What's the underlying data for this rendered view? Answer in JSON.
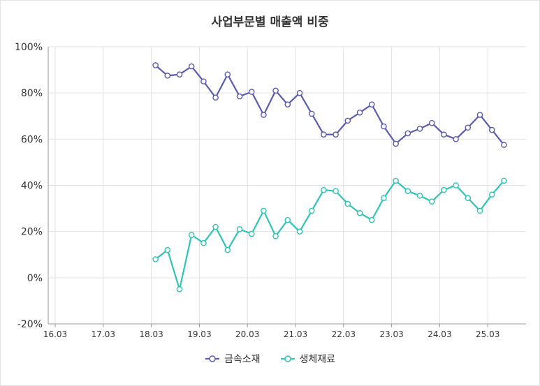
{
  "chart_data": {
    "type": "line",
    "title": "사업부문별 매출액 비중",
    "xlabel": "",
    "ylabel": "",
    "ylim": [
      -20,
      100
    ],
    "yticks": [
      "100%",
      "80%",
      "60%",
      "40%",
      "20%",
      "0%",
      "-20%"
    ],
    "ytick_values": [
      100,
      80,
      60,
      40,
      20,
      0,
      -20
    ],
    "xticks": [
      "16.03",
      "17.03",
      "18.03",
      "19.03",
      "20.03",
      "21.03",
      "22.03",
      "23.03",
      "24.03",
      "25.03"
    ],
    "grid": true,
    "legend_position": "bottom",
    "x_start": "18.03",
    "x_step": "quarter",
    "series": [
      {
        "name": "금속소재",
        "color": "#5b5bb0",
        "values": [
          92,
          87.5,
          88,
          91.5,
          85,
          78,
          88,
          78.5,
          80.5,
          70.5,
          81,
          75,
          80,
          71,
          62,
          62,
          68,
          71.5,
          75,
          65.5,
          58,
          62.5,
          64.5,
          67,
          62,
          60,
          65,
          70.5,
          64,
          57.5
        ]
      },
      {
        "name": "생체재료",
        "color": "#2ec4b6",
        "values": [
          8,
          12,
          -5,
          18.5,
          15,
          22,
          12,
          21,
          19,
          29,
          18,
          25,
          20,
          29,
          38,
          37.5,
          32,
          28,
          25,
          34.5,
          42,
          37.5,
          35.5,
          33,
          38,
          40,
          34.5,
          29,
          36,
          42
        ]
      }
    ]
  }
}
